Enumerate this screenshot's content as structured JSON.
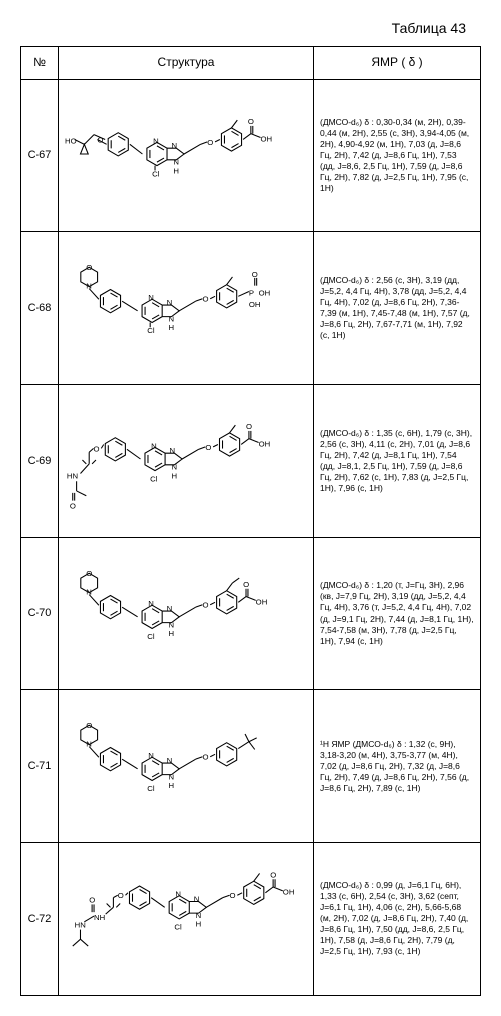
{
  "table_title": "Таблица 43",
  "headers": {
    "num": "№",
    "struct": "Структура",
    "nmr": "ЯМР ( δ )"
  },
  "rows": [
    {
      "id": "C-67",
      "nmr": "(ДМСО-d₆) δ :\n0,30-0,34 (м, 2H), 0,39-0,44 (м, 2H), 2,55 (с, 3H), 3,94-4,05 (м, 2H), 4,90-4,92 (м, 1H), 7,03 (д, J=8,6 Гц, 2H), 7,42 (д, J=8,6 Гц, 1H), 7,53 (дд, J=8,6, 2,5 Гц, 1H), 7,59 (д, J=8,6 Гц, 2H), 7,82 (д, J=2,5 Гц, 1H), 7,95 (с, 1H)"
    },
    {
      "id": "C-68",
      "nmr": "(ДМСО-d₆) δ :\n2,56 (с, 3H), 3,19 (дд, J=5,2, 4,4 Гц, 4H), 3,78 (дд, J=5,2, 4,4 Гц, 4H), 7,02 (д, J=8,6 Гц, 2H), 7,36-7,39 (м, 1H), 7,45-7,48 (м, 1H), 7,57 (д, J=8,6 Гц, 2H), 7,67-7,71 (м, 1H), 7,92 (с, 1H)"
    },
    {
      "id": "C-69",
      "nmr": "(ДМСО-d₆) δ :\n1,35 (с, 6H), 1,79 (с, 3H), 2,56 (с, 3H), 4,11 (с, 2H), 7,01 (д, J=8,6 Гц, 2H), 7,42 (д, J=8,1 Гц, 1H), 7,54 (дд, J=8,1, 2,5 Гц, 1H), 7,59 (д, J=8,6 Гц, 2H), 7,62 (с, 1H), 7,83 (д, J=2,5 Гц, 1H), 7,96 (с, 1H)"
    },
    {
      "id": "C-70",
      "nmr": "(ДМСО-d₆) δ :\n1,20 (т, J=Гц, 3H), 2,96 (кв, J=7,9 Гц, 2H), 3,19 (дд, J=5,2, 4,4 Гц, 4H), 3,76 (т, J=5,2, 4,4 Гц, 4H), 7,02 (д, J=9,1 Гц, 2H), 7,44 (д, J=8,1 Гц, 1H), 7,54-7,58 (м, 3H), 7,78 (д, J=2,5 Гц, 1H), 7,94 (с, 1H)"
    },
    {
      "id": "C-71",
      "nmr": "¹H ЯМР (ДМСО-d₆) δ :\n1,32 (с, 9H), 3,18-3,20 (м, 4H), 3,75-3,77 (м, 4H), 7,02 (д, J=8,6 Гц, 2H), 7,32 (д, J=8,6 Гц, 2H), 7,49 (д, J=8,6 Гц, 2H), 7,56 (д, J=8,6 Гц, 2H), 7,89 (с, 1H)"
    },
    {
      "id": "C-72",
      "nmr": "(ДМСО-d₆) δ :\n0,99 (д, J=6,1 Гц, 6H), 1,33 (с, 6H), 2,54 (с, 3H), 3,62 (септ, J=6,1 Гц, 1H), 4,06 (с, 2H), 5,66-5,68 (м, 2H), 7,02 (д, J=8,6 Гц, 2H), 7,40 (д, J=8,6 Гц, 1H), 7,50 (дд, J=8,6, 2,5 Гц, 1H), 7,58 (д, J=8,6 Гц, 2H), 7,79 (д, J=2,5 Гц, 1H), 7,93 (с, 1H)"
    }
  ],
  "structures": {
    "stroke": "#000000",
    "stroke_width": 1.2,
    "font_size": 9
  }
}
